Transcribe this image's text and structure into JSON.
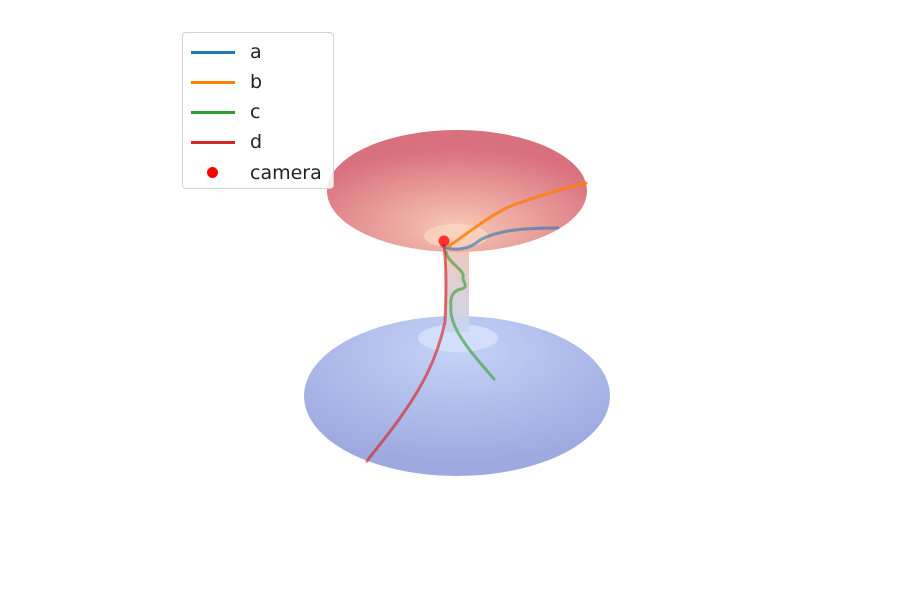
{
  "chart_data": {
    "type": "line",
    "title": "",
    "xlabel": "",
    "ylabel": "",
    "grid": false,
    "axes_visible": false,
    "legend_placement": "top-left",
    "surface": {
      "shape": "wormhole",
      "upper_color": "#d9707e",
      "upper_center_color": "#f7c8b4",
      "lower_color": "#9ea9e0",
      "lower_center_color": "#c4d3f7",
      "throat_color": "#f0d0c0"
    },
    "series": [
      {
        "name": "a",
        "color": "#1f77b4"
      },
      {
        "name": "b",
        "color": "#ff7f0e"
      },
      {
        "name": "c",
        "color": "#2ca02c"
      },
      {
        "name": "d",
        "color": "#d62728"
      }
    ],
    "markers": [
      {
        "name": "camera",
        "color": "#ff0000"
      }
    ]
  }
}
